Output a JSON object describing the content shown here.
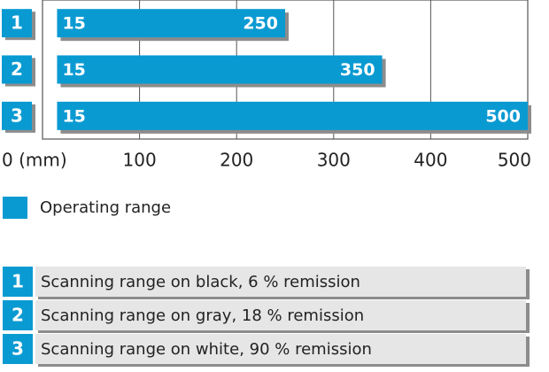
{
  "chart_data": {
    "type": "range-bar",
    "categories": [
      "1",
      "2",
      "3"
    ],
    "series": [
      {
        "name": "Operating range",
        "color": "#0a9ad2",
        "starts": [
          15,
          15,
          15
        ],
        "values": [
          250,
          350,
          500
        ]
      }
    ],
    "xlim": [
      0,
      500
    ],
    "xticks": [
      {
        "value": 0,
        "label": "0 (mm)"
      },
      100,
      200,
      300,
      400,
      500
    ],
    "grid": true
  },
  "key": [
    {
      "number": "1",
      "text": "Scanning range on black, 6 % remission"
    },
    {
      "number": "2",
      "text": "Scanning range on gray, 18 % remission"
    },
    {
      "number": "3",
      "text": "Scanning range on white, 90 % remission"
    }
  ]
}
